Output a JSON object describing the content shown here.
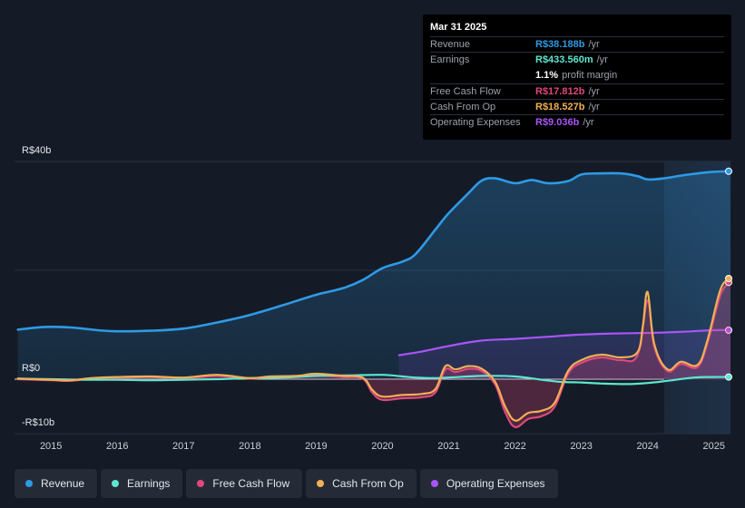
{
  "tooltip": {
    "date": "Mar 31 2025",
    "rows": [
      {
        "label": "Revenue",
        "value": "R$38.188b",
        "unit": "/yr",
        "color": "#2f9ae6"
      },
      {
        "label": "Earnings",
        "value": "R$433.560m",
        "unit": "/yr",
        "color": "#5ee6cf"
      },
      {
        "label": "",
        "value": "1.1%",
        "unit": "profit margin",
        "color": "#ffffff"
      },
      {
        "label": "Free Cash Flow",
        "value": "R$17.812b",
        "unit": "/yr",
        "color": "#e0487c"
      },
      {
        "label": "Cash From Op",
        "value": "R$18.527b",
        "unit": "/yr",
        "color": "#f0b055"
      },
      {
        "label": "Operating Expenses",
        "value": "R$9.036b",
        "unit": "/yr",
        "color": "#a855f7"
      }
    ]
  },
  "legend": [
    {
      "label": "Revenue",
      "color": "#2f9ae6"
    },
    {
      "label": "Earnings",
      "color": "#5ee6cf"
    },
    {
      "label": "Free Cash Flow",
      "color": "#e0487c"
    },
    {
      "label": "Cash From Op",
      "color": "#f0b055"
    },
    {
      "label": "Operating Expenses",
      "color": "#a855f7"
    }
  ],
  "chart_data": {
    "type": "area",
    "ylim": [
      -10,
      40
    ],
    "y_tick_labels": [
      "R$40b",
      "R$0",
      "-R$10b"
    ],
    "x_tick_labels": [
      "2015",
      "2016",
      "2017",
      "2018",
      "2019",
      "2020",
      "2021",
      "2022",
      "2023",
      "2024",
      "2025"
    ],
    "x_tick_values": [
      2015,
      2016,
      2017,
      2018,
      2019,
      2020,
      2021,
      2022,
      2023,
      2024,
      2025
    ],
    "xlim": [
      2014.45,
      2025.25
    ],
    "highlight_from": 2024.25,
    "series": [
      {
        "name": "Revenue",
        "color": "#2f9ae6",
        "fill": true,
        "x": [
          2014.5,
          2014.9,
          2015.3,
          2015.7,
          2016.0,
          2016.5,
          2017.0,
          2017.5,
          2018.0,
          2018.5,
          2019.0,
          2019.4,
          2019.7,
          2020.0,
          2020.3,
          2020.5,
          2020.8,
          2021.0,
          2021.3,
          2021.5,
          2021.7,
          2022.0,
          2022.25,
          2022.5,
          2022.8,
          2023.0,
          2023.25,
          2023.6,
          2023.85,
          2024.0,
          2024.25,
          2024.5,
          2024.75,
          2025.0,
          2025.25
        ],
        "y": [
          9.1,
          9.6,
          9.5,
          9.0,
          8.8,
          8.9,
          9.3,
          10.4,
          11.8,
          13.6,
          15.5,
          16.7,
          18.2,
          20.4,
          21.6,
          23.0,
          27.5,
          30.5,
          34.2,
          36.5,
          36.9,
          36.0,
          36.6,
          36.0,
          36.4,
          37.6,
          37.8,
          37.8,
          37.3,
          36.7,
          36.9,
          37.4,
          37.8,
          38.1,
          38.2
        ]
      },
      {
        "name": "Earnings",
        "color": "#5ee6cf",
        "fill": false,
        "x": [
          2014.5,
          2015.0,
          2015.5,
          2016.0,
          2016.5,
          2017.0,
          2017.5,
          2018.0,
          2018.5,
          2019.0,
          2019.5,
          2020.0,
          2020.3,
          2020.5,
          2020.8,
          2021.0,
          2021.5,
          2022.0,
          2022.4,
          2022.7,
          2023.0,
          2023.3,
          2023.7,
          2024.0,
          2024.3,
          2024.7,
          2025.0,
          2025.25
        ],
        "y": [
          0.1,
          0.0,
          -0.1,
          -0.1,
          -0.2,
          -0.1,
          0.0,
          0.2,
          0.3,
          0.6,
          0.7,
          0.8,
          0.5,
          0.3,
          0.2,
          0.3,
          0.6,
          0.5,
          -0.1,
          -0.5,
          -0.6,
          -0.8,
          -0.9,
          -0.7,
          -0.3,
          0.3,
          0.4,
          0.4
        ]
      },
      {
        "name": "Free Cash Flow",
        "color": "#e0487c",
        "fill": true,
        "x": [
          2014.5,
          2015.0,
          2015.3,
          2015.6,
          2016.0,
          2016.5,
          2017.0,
          2017.5,
          2018.0,
          2018.3,
          2018.7,
          2019.0,
          2019.4,
          2019.7,
          2019.85,
          2020.0,
          2020.3,
          2020.6,
          2020.8,
          2020.95,
          2021.1,
          2021.3,
          2021.5,
          2021.7,
          2021.85,
          2022.0,
          2022.2,
          2022.4,
          2022.6,
          2022.8,
          2023.0,
          2023.3,
          2023.6,
          2023.85,
          2024.0,
          2024.1,
          2024.3,
          2024.5,
          2024.75,
          2024.9,
          2025.1,
          2025.25
        ],
        "y": [
          0.0,
          -0.2,
          -0.3,
          0.1,
          0.2,
          0.4,
          0.1,
          0.6,
          0.1,
          0.4,
          0.5,
          0.7,
          0.4,
          0.1,
          -2.5,
          -3.8,
          -3.5,
          -3.3,
          -2.4,
          1.8,
          1.3,
          1.9,
          1.5,
          -1.0,
          -6.0,
          -8.8,
          -7.3,
          -6.8,
          -5.0,
          1.0,
          3.0,
          4.0,
          3.5,
          4.5,
          14.5,
          6.0,
          1.5,
          2.8,
          2.2,
          6.5,
          15.5,
          17.8
        ]
      },
      {
        "name": "Cash From Op",
        "color": "#f0b055",
        "fill": false,
        "x": [
          2014.5,
          2015.0,
          2015.3,
          2015.6,
          2016.0,
          2016.5,
          2017.0,
          2017.5,
          2018.0,
          2018.3,
          2018.7,
          2019.0,
          2019.4,
          2019.7,
          2019.85,
          2020.0,
          2020.3,
          2020.6,
          2020.8,
          2020.95,
          2021.1,
          2021.3,
          2021.5,
          2021.7,
          2021.85,
          2022.0,
          2022.2,
          2022.4,
          2022.6,
          2022.8,
          2023.0,
          2023.3,
          2023.6,
          2023.85,
          2023.93,
          2024.0,
          2024.1,
          2024.3,
          2024.5,
          2024.75,
          2024.9,
          2025.1,
          2025.25
        ],
        "y": [
          0.1,
          -0.1,
          -0.2,
          0.2,
          0.4,
          0.5,
          0.3,
          0.8,
          0.2,
          0.5,
          0.6,
          1.0,
          0.6,
          0.3,
          -2.0,
          -3.2,
          -2.9,
          -2.7,
          -1.8,
          2.4,
          1.8,
          2.4,
          1.9,
          -0.5,
          -5.0,
          -7.6,
          -6.2,
          -5.8,
          -4.3,
          1.5,
          3.5,
          4.5,
          4.0,
          5.0,
          10.0,
          16.0,
          6.5,
          1.8,
          3.2,
          2.6,
          7.0,
          16.5,
          18.5
        ]
      },
      {
        "name": "Operating Expenses",
        "color": "#a855f7",
        "fill": true,
        "x": [
          2020.25,
          2020.6,
          2021.0,
          2021.5,
          2022.0,
          2022.5,
          2023.0,
          2023.5,
          2024.0,
          2024.5,
          2025.0,
          2025.25
        ],
        "y": [
          4.4,
          5.1,
          6.1,
          7.1,
          7.4,
          7.8,
          8.2,
          8.4,
          8.5,
          8.7,
          9.0,
          9.0
        ]
      }
    ]
  }
}
